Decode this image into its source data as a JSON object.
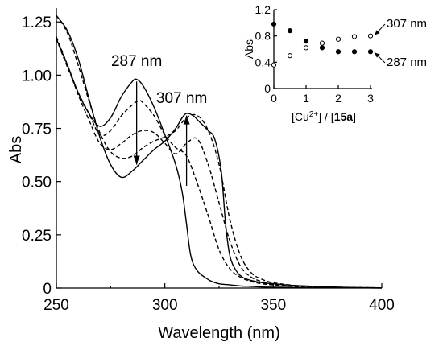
{
  "chart_data": [
    {
      "type": "line",
      "title": "",
      "xlabel": "Wavelength (nm)",
      "ylabel": "Abs",
      "xlim": [
        250,
        400
      ],
      "ylim": [
        0,
        1.3
      ],
      "xticks": [
        250,
        300,
        350,
        400
      ],
      "yticks": [
        0,
        0.25,
        0.5,
        0.75,
        1.0,
        1.25
      ],
      "xtick_labels": [
        "250",
        "300",
        "350",
        "400"
      ],
      "ytick_labels": [
        "0",
        "0.25",
        "0.50",
        "0.75",
        "1.00",
        "1.25"
      ],
      "grid": false,
      "legend": "none",
      "annotations": [
        {
          "text": "287 nm",
          "arrow": "down",
          "x": 287,
          "y_from": 0.97,
          "y_to": 0.58
        },
        {
          "text": "307 nm",
          "arrow": "up",
          "x": 310,
          "y_from": 0.48,
          "y_to": 0.81
        }
      ],
      "series": [
        {
          "style": "solid",
          "x": [
            250,
            255,
            260,
            265,
            270,
            275,
            280,
            285,
            287,
            290,
            295,
            300,
            305,
            308,
            310,
            312,
            315,
            320,
            322,
            325,
            330,
            335,
            340,
            345,
            350,
            360,
            370,
            380,
            390,
            400
          ],
          "y": [
            1.17,
            1.05,
            0.92,
            0.82,
            0.76,
            0.8,
            0.9,
            0.97,
            0.98,
            0.95,
            0.85,
            0.72,
            0.58,
            0.45,
            0.3,
            0.15,
            0.08,
            0.04,
            0.03,
            0.02,
            0.015,
            0.01,
            0.008,
            0.005,
            0.004,
            0.003,
            0.002,
            0.001,
            0.001,
            0.0
          ]
        },
        {
          "style": "dashed",
          "x": [
            250,
            255,
            260,
            265,
            270,
            275,
            280,
            285,
            288,
            290,
            295,
            300,
            305,
            310,
            315,
            320,
            325,
            330,
            335,
            340,
            345,
            350,
            360,
            370,
            380,
            390,
            400
          ],
          "y": [
            1.17,
            1.04,
            0.92,
            0.82,
            0.72,
            0.74,
            0.81,
            0.86,
            0.88,
            0.87,
            0.81,
            0.72,
            0.66,
            0.62,
            0.49,
            0.34,
            0.18,
            0.09,
            0.05,
            0.03,
            0.02,
            0.015,
            0.008,
            0.005,
            0.003,
            0.002,
            0.001
          ]
        },
        {
          "style": "dashed",
          "x": [
            250,
            255,
            260,
            265,
            270,
            275,
            280,
            285,
            290,
            295,
            300,
            305,
            310,
            315,
            320,
            325,
            330,
            335,
            340,
            345,
            350,
            360,
            370,
            380,
            390,
            400
          ],
          "y": [
            1.18,
            1.05,
            0.91,
            0.79,
            0.68,
            0.65,
            0.68,
            0.72,
            0.74,
            0.73,
            0.68,
            0.63,
            0.68,
            0.7,
            0.58,
            0.4,
            0.22,
            0.1,
            0.05,
            0.03,
            0.02,
            0.01,
            0.006,
            0.004,
            0.002,
            0.001
          ]
        },
        {
          "style": "dashed",
          "x": [
            250,
            255,
            260,
            265,
            270,
            275,
            280,
            285,
            290,
            295,
            300,
            305,
            310,
            315,
            320,
            325,
            330,
            335,
            340,
            345,
            350,
            360,
            370,
            380,
            390,
            400
          ],
          "y": [
            1.28,
            1.2,
            1.05,
            0.88,
            0.73,
            0.64,
            0.61,
            0.62,
            0.66,
            0.69,
            0.71,
            0.74,
            0.8,
            0.81,
            0.74,
            0.58,
            0.32,
            0.15,
            0.07,
            0.04,
            0.025,
            0.012,
            0.007,
            0.004,
            0.002,
            0.001
          ]
        },
        {
          "style": "solid",
          "x": [
            250,
            255,
            260,
            265,
            270,
            275,
            280,
            285,
            290,
            295,
            300,
            305,
            308,
            310,
            313,
            316,
            320,
            323,
            326,
            328,
            330,
            333,
            336,
            340,
            345,
            350,
            360,
            370,
            380,
            390,
            400
          ],
          "y": [
            1.28,
            1.21,
            1.08,
            0.89,
            0.71,
            0.58,
            0.52,
            0.55,
            0.6,
            0.65,
            0.69,
            0.75,
            0.8,
            0.82,
            0.81,
            0.78,
            0.74,
            0.7,
            0.55,
            0.3,
            0.15,
            0.08,
            0.05,
            0.035,
            0.025,
            0.02,
            0.012,
            0.008,
            0.004,
            0.002,
            0.001
          ]
        }
      ]
    },
    {
      "type": "scatter",
      "title": "",
      "xlabel_parts": [
        "[Cu",
        "2+",
        "] / [",
        "15a",
        "]"
      ],
      "ylabel": "Abs",
      "xlim": [
        0,
        3
      ],
      "ylim": [
        0,
        1.2
      ],
      "xticks": [
        0,
        1,
        2,
        3
      ],
      "yticks": [
        0,
        0.4,
        0.8,
        1.2
      ],
      "xtick_labels": [
        "0",
        "1",
        "2",
        "3"
      ],
      "ytick_labels": [
        "0",
        "0.4",
        "0.8",
        "1.2"
      ],
      "grid": false,
      "legend": "none",
      "series": [
        {
          "label": "307 nm",
          "marker": "open-circle",
          "x": [
            0,
            0.5,
            1,
            1.5,
            2,
            2.5,
            3
          ],
          "y": [
            0.36,
            0.5,
            0.62,
            0.69,
            0.75,
            0.79,
            0.8
          ]
        },
        {
          "label": "287 nm",
          "marker": "filled-circle",
          "x": [
            0,
            0.5,
            1,
            1.5,
            2,
            2.5,
            3
          ],
          "y": [
            0.98,
            0.88,
            0.72,
            0.62,
            0.56,
            0.56,
            0.56
          ]
        }
      ]
    }
  ]
}
